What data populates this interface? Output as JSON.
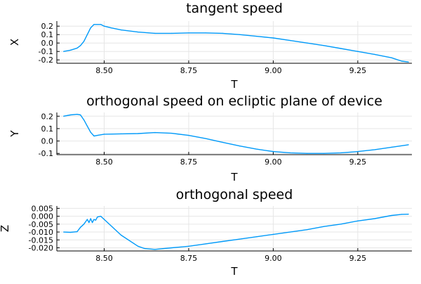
{
  "chart_data": [
    {
      "type": "line",
      "title": "tangent speed",
      "xlabel": "T",
      "ylabel": "X",
      "xlim": [
        8.36,
        9.41
      ],
      "ylim": [
        -0.24,
        0.26
      ],
      "xticks": [
        8.5,
        8.75,
        9.0,
        9.25
      ],
      "xticklabels": [
        "8.50",
        "8.75",
        "9.00",
        "9.25"
      ],
      "yticks": [
        0.2,
        0.1,
        0.0,
        -0.1,
        -0.2
      ],
      "yticklabels": [
        "0.2",
        "0.1",
        "0.0",
        "-0.1",
        "-0.2"
      ],
      "grid": true,
      "legend": "none",
      "color": "#009af9",
      "series": [
        {
          "x": [
            8.38,
            8.4,
            8.42,
            8.43,
            8.44,
            8.45,
            8.46,
            8.47,
            8.49,
            8.5,
            8.52,
            8.55,
            8.6,
            8.65,
            8.7,
            8.75,
            8.8,
            8.85,
            8.9,
            8.95,
            9.0,
            9.05,
            9.1,
            9.15,
            9.2,
            9.25,
            9.3,
            9.35,
            9.38,
            9.4
          ],
          "y": [
            -0.1,
            -0.085,
            -0.06,
            -0.03,
            0.02,
            0.1,
            0.18,
            0.22,
            0.22,
            0.2,
            0.18,
            0.155,
            0.13,
            0.115,
            0.115,
            0.12,
            0.12,
            0.115,
            0.1,
            0.08,
            0.06,
            0.03,
            0.0,
            -0.03,
            -0.065,
            -0.1,
            -0.135,
            -0.175,
            -0.215,
            -0.225
          ]
        }
      ]
    },
    {
      "type": "line",
      "title": "orthogonal speed on ecliptic plane of device",
      "xlabel": "T",
      "ylabel": "Y",
      "xlim": [
        8.36,
        9.41
      ],
      "ylim": [
        -0.11,
        0.23
      ],
      "xticks": [
        8.5,
        8.75,
        9.0,
        9.25
      ],
      "xticklabels": [
        "8.50",
        "8.75",
        "9.00",
        "9.25"
      ],
      "yticks": [
        0.2,
        0.1,
        0.0,
        -0.1
      ],
      "yticklabels": [
        "0.2",
        "0.1",
        "0.0",
        "-0.1"
      ],
      "grid": true,
      "legend": "none",
      "color": "#009af9",
      "series": [
        {
          "x": [
            8.38,
            8.4,
            8.42,
            8.43,
            8.44,
            8.45,
            8.46,
            8.47,
            8.48,
            8.5,
            8.55,
            8.6,
            8.65,
            8.7,
            8.75,
            8.8,
            8.85,
            8.9,
            8.95,
            9.0,
            9.05,
            9.1,
            9.15,
            9.2,
            9.25,
            9.3,
            9.35,
            9.4
          ],
          "y": [
            0.2,
            0.21,
            0.215,
            0.21,
            0.17,
            0.12,
            0.07,
            0.04,
            0.045,
            0.055,
            0.058,
            0.06,
            0.068,
            0.062,
            0.045,
            0.02,
            -0.01,
            -0.04,
            -0.065,
            -0.085,
            -0.095,
            -0.1,
            -0.1,
            -0.095,
            -0.085,
            -0.07,
            -0.05,
            -0.03
          ]
        }
      ]
    },
    {
      "type": "line",
      "title": "orthogonal speed",
      "xlabel": "T",
      "ylabel": "Z",
      "xlim": [
        8.36,
        9.41
      ],
      "ylim": [
        -0.022,
        0.0065
      ],
      "xticks": [
        8.5,
        8.75,
        9.0,
        9.25
      ],
      "xticklabels": [
        "8.50",
        "8.75",
        "9.00",
        "9.25"
      ],
      "yticks": [
        0.005,
        0.0,
        -0.005,
        -0.01,
        -0.015,
        -0.02
      ],
      "yticklabels": [
        "0.005",
        "0.000",
        "-0.005",
        "-0.010",
        "-0.015",
        "-0.020"
      ],
      "grid": true,
      "legend": "none",
      "color": "#009af9",
      "series": [
        {
          "x": [
            8.38,
            8.4,
            8.42,
            8.43,
            8.44,
            8.45,
            8.455,
            8.46,
            8.465,
            8.47,
            8.475,
            8.48,
            8.49,
            8.5,
            8.55,
            8.6,
            8.62,
            8.65,
            8.7,
            8.75,
            8.8,
            8.85,
            8.9,
            8.95,
            9.0,
            9.05,
            9.1,
            9.15,
            9.2,
            9.25,
            9.3,
            9.35,
            9.38,
            9.4
          ],
          "y": [
            -0.01,
            -0.0102,
            -0.0098,
            -0.007,
            -0.005,
            -0.002,
            -0.004,
            -0.0015,
            -0.004,
            -0.002,
            -0.0025,
            -0.0005,
            0.0,
            -0.002,
            -0.012,
            -0.019,
            -0.0205,
            -0.021,
            -0.02,
            -0.019,
            -0.0175,
            -0.016,
            -0.0145,
            -0.013,
            -0.0115,
            -0.01,
            -0.0085,
            -0.0065,
            -0.005,
            -0.003,
            -0.0015,
            0.0005,
            0.0012,
            0.0013
          ]
        }
      ]
    }
  ]
}
